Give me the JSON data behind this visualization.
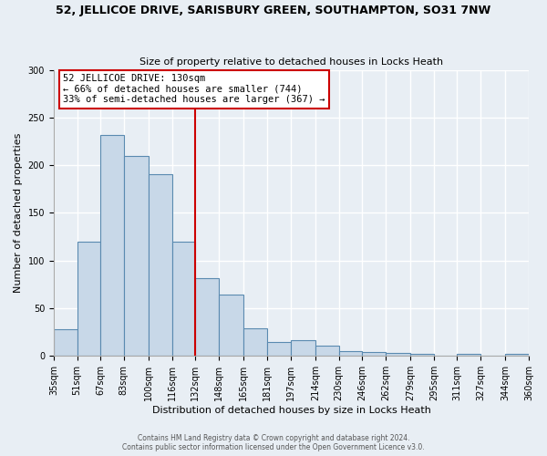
{
  "title1": "52, JELLICOE DRIVE, SARISBURY GREEN, SOUTHAMPTON, SO31 7NW",
  "title2": "Size of property relative to detached houses in Locks Heath",
  "xlabel": "Distribution of detached houses by size in Locks Heath",
  "ylabel": "Number of detached properties",
  "bar_values": [
    28,
    120,
    232,
    210,
    191,
    120,
    82,
    64,
    29,
    15,
    17,
    11,
    5,
    4,
    3,
    2,
    0,
    2,
    0,
    2
  ],
  "bin_edges": [
    35,
    51,
    67,
    83,
    100,
    116,
    132,
    148,
    165,
    181,
    197,
    214,
    230,
    246,
    262,
    279,
    295,
    311,
    327,
    344,
    360
  ],
  "tick_labels": [
    "35sqm",
    "51sqm",
    "67sqm",
    "83sqm",
    "100sqm",
    "116sqm",
    "132sqm",
    "148sqm",
    "165sqm",
    "181sqm",
    "197sqm",
    "214sqm",
    "230sqm",
    "246sqm",
    "262sqm",
    "279sqm",
    "295sqm",
    "311sqm",
    "327sqm",
    "344sqm",
    "360sqm"
  ],
  "bar_fill_color": "#c8d8e8",
  "bar_edge_color": "#5a8ab0",
  "vline_x": 132,
  "vline_color": "#cc0000",
  "annotation_line1": "52 JELLICOE DRIVE: 130sqm",
  "annotation_line2": "← 66% of detached houses are smaller (744)",
  "annotation_line3": "33% of semi-detached houses are larger (367) →",
  "annotation_box_color": "#cc0000",
  "ylim": [
    0,
    300
  ],
  "yticks": [
    0,
    50,
    100,
    150,
    200,
    250,
    300
  ],
  "background_color": "#e8eef4",
  "grid_color": "#ffffff",
  "footer1": "Contains HM Land Registry data © Crown copyright and database right 2024.",
  "footer2": "Contains public sector information licensed under the Open Government Licence v3.0."
}
